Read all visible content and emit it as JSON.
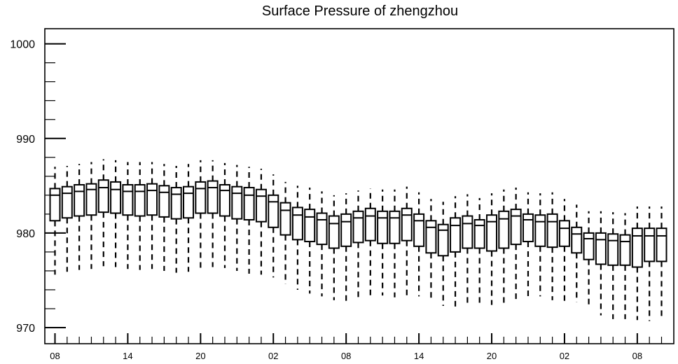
{
  "chart_data": {
    "type": "boxplot",
    "title": "Surface Pressure of zhengzhou",
    "xlabel": "",
    "ylabel": "",
    "ylim": [
      968.3,
      1001.6
    ],
    "y_ticks": [
      970,
      980,
      990,
      1000
    ],
    "y_tick_labels": [
      "970",
      "980",
      "990",
      "1000"
    ],
    "x_tick_labels": [
      "08",
      "14",
      "20",
      "02",
      "08",
      "14",
      "20",
      "02",
      "08"
    ],
    "x_tick_every": 6,
    "grid": false,
    "series": [
      {
        "whisker_low": [
          975.6,
          975.9,
          976.1,
          976.2,
          976.5,
          976.4,
          976.2,
          976.1,
          976.2,
          976.0,
          975.8,
          975.9,
          976.3,
          976.4,
          976.3,
          976.0,
          975.7,
          975.6,
          975.3,
          974.6,
          974.0,
          973.6,
          973.3,
          972.9,
          972.8,
          973.0,
          973.2,
          973.4,
          973.2,
          973.2,
          973.3,
          972.9,
          972.3,
          971.9,
          972.3,
          972.4,
          972.4,
          972.4,
          972.8,
          973.1,
          973.3,
          972.9,
          972.8,
          972.7,
          972.2,
          971.3,
          970.9,
          970.9,
          970.8,
          970.7,
          971.2
        ],
        "q1": [
          981.3,
          981.6,
          981.8,
          981.9,
          982.2,
          982.1,
          981.9,
          981.8,
          981.9,
          981.7,
          981.5,
          981.6,
          982.1,
          982.1,
          981.8,
          981.5,
          981.4,
          981.2,
          980.6,
          979.8,
          979.3,
          979.1,
          978.8,
          978.4,
          978.6,
          979.0,
          979.2,
          978.9,
          978.9,
          979.2,
          978.6,
          977.9,
          977.6,
          978.0,
          978.4,
          978.4,
          978.1,
          978.4,
          978.8,
          979.1,
          978.6,
          978.5,
          978.6,
          977.9,
          977.2,
          976.7,
          976.6,
          976.6,
          976.4,
          977.0,
          977.0
        ],
        "median": [
          984.0,
          984.2,
          984.4,
          984.6,
          984.8,
          984.6,
          984.4,
          984.4,
          984.5,
          984.3,
          984.1,
          984.2,
          984.7,
          984.8,
          984.5,
          984.2,
          984.0,
          983.9,
          983.3,
          982.4,
          981.9,
          981.7,
          981.4,
          981.0,
          981.2,
          981.6,
          981.8,
          981.6,
          981.6,
          981.9,
          981.3,
          980.6,
          980.3,
          980.8,
          981.0,
          980.8,
          981.2,
          981.5,
          981.8,
          981.4,
          981.2,
          981.2,
          980.5,
          979.9,
          979.4,
          979.3,
          979.2,
          979.1,
          979.7,
          979.7,
          979.7
        ],
        "q3": [
          984.7,
          984.9,
          985.1,
          985.2,
          985.6,
          985.4,
          985.1,
          985.1,
          985.2,
          985.0,
          984.8,
          984.9,
          985.4,
          985.5,
          985.1,
          984.9,
          984.8,
          984.6,
          984.0,
          983.2,
          982.7,
          982.5,
          982.1,
          981.8,
          982.0,
          982.3,
          982.6,
          982.3,
          982.3,
          982.6,
          982.0,
          981.3,
          980.9,
          981.6,
          981.8,
          981.4,
          981.9,
          982.3,
          982.5,
          982.0,
          981.9,
          982.0,
          981.3,
          980.6,
          980.0,
          980.0,
          979.9,
          979.8,
          980.5,
          980.5,
          980.5
        ],
        "whisker_high": [
          987.0,
          987.1,
          987.3,
          987.5,
          987.8,
          987.7,
          987.5,
          987.5,
          987.5,
          987.3,
          987.1,
          987.3,
          987.7,
          987.7,
          987.4,
          987.2,
          987.0,
          986.8,
          986.2,
          985.4,
          985.0,
          984.8,
          984.4,
          984.0,
          984.2,
          984.5,
          984.7,
          984.6,
          984.6,
          984.9,
          984.3,
          983.6,
          983.3,
          983.9,
          984.1,
          983.7,
          984.2,
          984.6,
          984.8,
          984.3,
          984.2,
          984.3,
          983.6,
          983.0,
          982.3,
          982.3,
          982.2,
          982.1,
          982.8,
          982.8,
          982.8
        ]
      }
    ]
  }
}
